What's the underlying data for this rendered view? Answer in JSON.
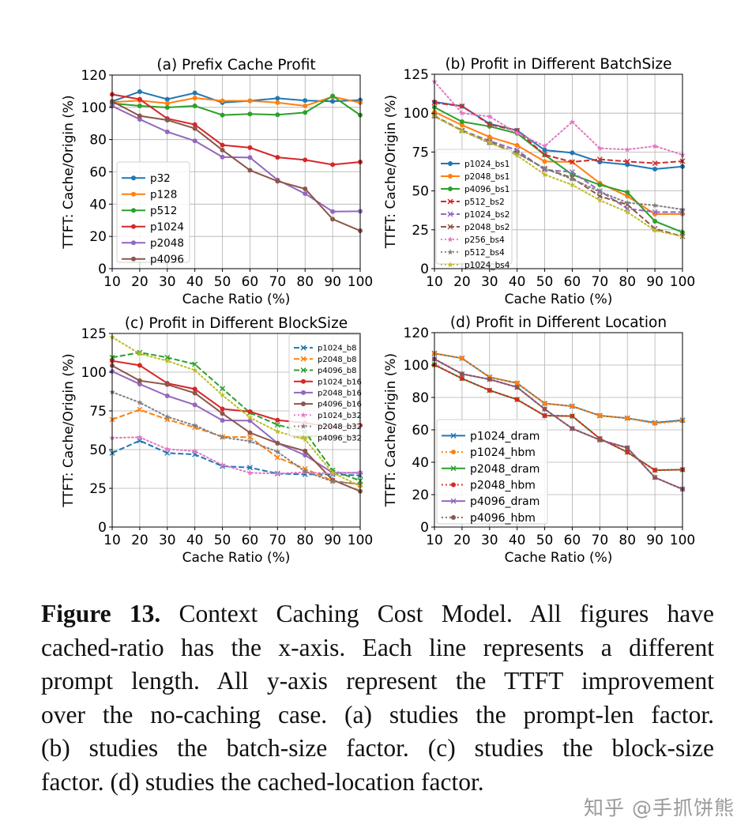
{
  "chart_data": [
    {
      "type": "line",
      "title": "(a) Prefix Cache Profit",
      "xlabel": "Cache Ratio (%)",
      "ylabel": "TTFT: Cache/Origin (%)",
      "x": [
        10,
        20,
        30,
        40,
        50,
        60,
        70,
        80,
        90,
        100
      ],
      "xlim": [
        10,
        100
      ],
      "ylim": [
        0,
        120
      ],
      "yticks": [
        0,
        20,
        40,
        60,
        80,
        100,
        120
      ],
      "grid": true,
      "legend": "lower-left",
      "series": [
        {
          "name": "p32",
          "color": "#1f77b4",
          "style": "solid",
          "marker": "o",
          "values": [
            103.7,
            109.7,
            105,
            108.9,
            102.9,
            104,
            105.6,
            104.2,
            103.7,
            104.5
          ]
        },
        {
          "name": "p128",
          "color": "#ff7f0e",
          "style": "solid",
          "marker": "o",
          "values": [
            103.2,
            104.2,
            102.5,
            105.8,
            104,
            104,
            102.9,
            100.9,
            106.6,
            102.9
          ]
        },
        {
          "name": "p512",
          "color": "#2ca02c",
          "style": "solid",
          "marker": "o",
          "values": [
            102.5,
            100.9,
            99.9,
            100.9,
            95.2,
            95.9,
            95.4,
            96.8,
            107,
            95.2
          ]
        },
        {
          "name": "p1024",
          "color": "#d62728",
          "style": "solid",
          "marker": "o",
          "values": [
            108,
            105,
            93,
            89.3,
            76.6,
            75,
            69,
            67.4,
            64.5,
            66.1
          ]
        },
        {
          "name": "p2048",
          "color": "#9467bd",
          "style": "solid",
          "marker": "o",
          "values": [
            100.8,
            92.6,
            84.8,
            79.2,
            69.2,
            68.9,
            55,
            46.5,
            35.4,
            35.6
          ]
        },
        {
          "name": "p4096",
          "color": "#8c564b",
          "style": "solid",
          "marker": "o",
          "values": [
            103.7,
            94.7,
            92.1,
            86.9,
            73.5,
            61,
            54.2,
            49.5,
            30.7,
            23.5
          ]
        }
      ]
    },
    {
      "type": "line",
      "title": "(b) Profit in Different BatchSize",
      "xlabel": "Cache Ratio (%)",
      "ylabel": "TTFT: Cache/Origin (%)",
      "x": [
        10,
        20,
        30,
        40,
        50,
        60,
        70,
        80,
        90,
        100
      ],
      "xlim": [
        10,
        100
      ],
      "ylim": [
        0,
        125
      ],
      "yticks": [
        0,
        25,
        50,
        75,
        100,
        125
      ],
      "grid": true,
      "legend": "lower-left",
      "series": [
        {
          "name": "p1024_bs1",
          "color": "#1f77b4",
          "style": "solid",
          "marker": "o",
          "values": [
            107.2,
            104.5,
            93.2,
            88.9,
            76.2,
            74.5,
            68.6,
            66.9,
            64,
            65.7
          ]
        },
        {
          "name": "p2048_bs1",
          "color": "#ff7f0e",
          "style": "solid",
          "marker": "o",
          "values": [
            100.8,
            92.3,
            84.7,
            79.3,
            68.9,
            68.6,
            55,
            46.6,
            35.1,
            35.1
          ]
        },
        {
          "name": "p4096_bs1",
          "color": "#2ca02c",
          "style": "solid",
          "marker": "o",
          "values": [
            103.8,
            94.5,
            91.5,
            87,
            73.2,
            60.5,
            53.9,
            49.1,
            30.5,
            23.4
          ]
        },
        {
          "name": "p512_bs2",
          "color": "#d62728",
          "style": "dashed",
          "marker": "x",
          "values": [
            106.7,
            104.5,
            92.7,
            88.8,
            73.2,
            68.6,
            70.3,
            68.9,
            67.8,
            69.1
          ]
        },
        {
          "name": "p1024_bs2",
          "color": "#9467bd",
          "style": "dashed",
          "marker": "x",
          "values": [
            98.3,
            88.9,
            82.2,
            76.2,
            63.5,
            62.2,
            50,
            38.6,
            36.4,
            36.4
          ]
        },
        {
          "name": "p2048_bs2",
          "color": "#8c564b",
          "style": "dashed",
          "marker": "x",
          "values": [
            98.3,
            88.8,
            81.3,
            74.5,
            64.4,
            58.4,
            46.6,
            41.2,
            25.7,
            20.7
          ]
        },
        {
          "name": "p256_bs4",
          "color": "#e377c2",
          "style": "dotted",
          "marker": "*",
          "values": [
            120.3,
            100,
            97.9,
            87.2,
            78.8,
            94.4,
            77.4,
            76.6,
            78.8,
            73.2
          ]
        },
        {
          "name": "p512_bs4",
          "color": "#7f7f7f",
          "style": "dotted",
          "marker": "*",
          "values": [
            97.9,
            88.6,
            80.8,
            74.2,
            64.4,
            57.6,
            49.5,
            42.4,
            40.7,
            38.1
          ]
        },
        {
          "name": "p1024_bs4",
          "color": "#bcbd22",
          "style": "dotted",
          "marker": "*",
          "values": [
            98.3,
            88.6,
            81.3,
            72.8,
            60.5,
            53.9,
            44,
            36.4,
            24.6,
            20.7
          ]
        }
      ]
    },
    {
      "type": "line",
      "title": "(c) Profit in Different BlockSize",
      "xlabel": "Cache Ratio (%)",
      "ylabel": "TTFT: Cache/Origin (%)",
      "x": [
        10,
        20,
        30,
        40,
        50,
        60,
        70,
        80,
        90,
        100
      ],
      "xlim": [
        10,
        100
      ],
      "ylim": [
        0,
        125
      ],
      "yticks": [
        0,
        25,
        50,
        75,
        100,
        125
      ],
      "grid": true,
      "legend": "upper-right",
      "series": [
        {
          "name": "p1024_b8",
          "color": "#1f77b4",
          "style": "dashed",
          "marker": "x",
          "values": [
            47.8,
            55.8,
            47.8,
            46.9,
            39.3,
            38.4,
            34.5,
            34,
            34,
            33.3
          ]
        },
        {
          "name": "p2048_b8",
          "color": "#ff7f0e",
          "style": "dashed",
          "marker": "x",
          "values": [
            69.4,
            75.8,
            69.4,
            64.3,
            58.3,
            58,
            44.9,
            37.6,
            29.9,
            27.4
          ]
        },
        {
          "name": "p4096_b8",
          "color": "#2ca02c",
          "style": "dashed",
          "marker": "x",
          "values": [
            109.5,
            112.7,
            109.5,
            105.1,
            89.4,
            73.8,
            66,
            61.4,
            36.7,
            29.9
          ]
        },
        {
          "name": "p1024_b16",
          "color": "#d62728",
          "style": "solid",
          "marker": "o",
          "values": [
            107.3,
            104.4,
            92.8,
            89.1,
            76.3,
            74.5,
            69,
            67.3,
            64.5,
            65.6
          ]
        },
        {
          "name": "p2048_b16",
          "color": "#9467bd",
          "style": "solid",
          "marker": "o",
          "values": [
            100.5,
            92.3,
            84.7,
            78.9,
            68.9,
            68.7,
            54.2,
            46.4,
            35,
            35
          ]
        },
        {
          "name": "p4096_b16",
          "color": "#8c564b",
          "style": "solid",
          "marker": "o",
          "values": [
            104.2,
            94.5,
            92,
            86.5,
            73.3,
            60.9,
            54.1,
            49.1,
            30.4,
            23.1
          ]
        },
        {
          "name": "p1024_b32",
          "color": "#e377c2",
          "style": "dotted",
          "marker": "*",
          "values": [
            57.6,
            58,
            50.3,
            49,
            40.1,
            35,
            34.5,
            35.4,
            34.5,
            35.4
          ]
        },
        {
          "name": "p2048_b32",
          "color": "#7f7f7f",
          "style": "dotted",
          "marker": "*",
          "values": [
            87.2,
            80.4,
            71.2,
            65.6,
            58,
            55.4,
            48.6,
            35.9,
            29.4,
            27.7
          ]
        },
        {
          "name": "p4096_b32",
          "color": "#bcbd22",
          "style": "dotted",
          "marker": "*",
          "values": [
            122.6,
            111.9,
            107.3,
            101.3,
            85.2,
            70.7,
            61.7,
            56.6,
            35,
            26.5
          ]
        }
      ]
    },
    {
      "type": "line",
      "title": "(d) Profit in Different Location",
      "xlabel": "Cache Ratio (%)",
      "ylabel": "TTFT: Cache/Origin (%)",
      "x": [
        10,
        20,
        30,
        40,
        50,
        60,
        70,
        80,
        90,
        100
      ],
      "xlim": [
        10,
        100
      ],
      "ylim": [
        0,
        120
      ],
      "yticks": [
        0,
        20,
        40,
        60,
        80,
        100,
        120
      ],
      "grid": true,
      "legend": "lower-left",
      "series": [
        {
          "name": "p1024_dram",
          "color": "#1f77b4",
          "style": "solid",
          "marker": "x",
          "values": [
            107.2,
            104.2,
            92.5,
            88.8,
            76.3,
            74.6,
            68.8,
            67.2,
            64.4,
            66
          ]
        },
        {
          "name": "p1024_hbm",
          "color": "#ff7f0e",
          "style": "dotted",
          "marker": "o",
          "values": [
            107.2,
            104.2,
            92.5,
            88.8,
            76.3,
            74.6,
            68.8,
            67.2,
            64,
            65.6
          ]
        },
        {
          "name": "p2048_dram",
          "color": "#2ca02c",
          "style": "solid",
          "marker": "x",
          "values": [
            100.2,
            91.7,
            84.4,
            78.7,
            68.8,
            68.5,
            54.6,
            46.2,
            35.1,
            35.4
          ]
        },
        {
          "name": "p2048_hbm",
          "color": "#d62728",
          "style": "dotted",
          "marker": "o",
          "values": [
            100.2,
            91.7,
            84.4,
            78.7,
            68.8,
            68.5,
            54.6,
            46.2,
            35.1,
            35.4
          ]
        },
        {
          "name": "p4096_dram",
          "color": "#9467bd",
          "style": "solid",
          "marker": "x",
          "values": [
            103.7,
            94.5,
            91.2,
            86.3,
            72.8,
            60.8,
            53.8,
            48.9,
            30.6,
            23.4
          ]
        },
        {
          "name": "p4096_hbm",
          "color": "#8c564b",
          "style": "dotted",
          "marker": "o",
          "values": [
            103.7,
            94.5,
            91.2,
            86.3,
            72.8,
            60.8,
            53.8,
            48.9,
            30.6,
            23.4
          ]
        }
      ]
    }
  ],
  "caption": {
    "label": "Figure 13.",
    "lines": [
      " Context Caching Cost Model. All figures have",
      "cached-ratio has the x-axis. Each line represents a different",
      "prompt length. All y-axis represent the TTFT improvement",
      "over the no-caching case. (a) studies the prompt-len factor.",
      "(b) studies the batch-size factor. (c) studies the block-size",
      "factor. (d) studies the cached-location factor."
    ]
  },
  "watermark": "知乎 @手抓饼熊"
}
